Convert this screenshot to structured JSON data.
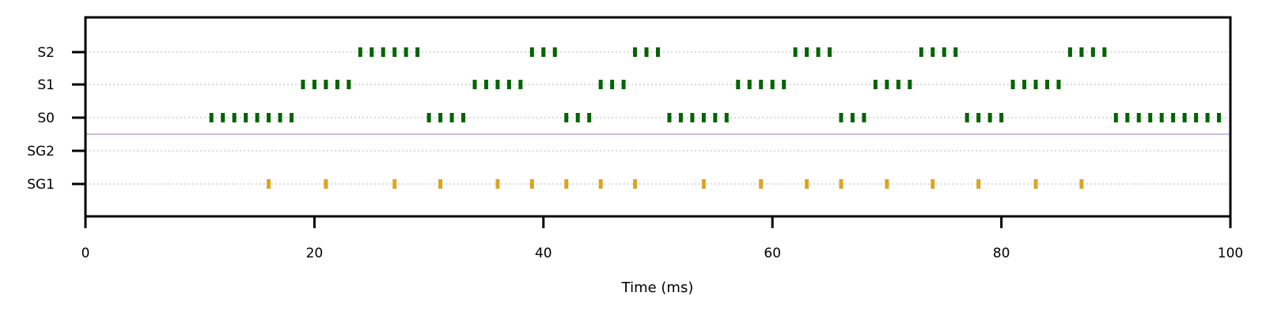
{
  "chart_data": {
    "type": "scatter",
    "title": "",
    "xlabel": "Time (ms)",
    "ylabel": "",
    "xlim": [
      0,
      100
    ],
    "x_ticks": [
      0,
      20,
      40,
      60,
      80,
      100
    ],
    "rows": [
      "S2",
      "S1",
      "S0",
      "SG2",
      "SG1"
    ],
    "grid": "horizontal dotted lines at each row",
    "separator": "horizontal line between S0 and SG2",
    "series": [
      {
        "name": "S2",
        "color": "#006400",
        "x": [
          24,
          25,
          26,
          27,
          28,
          29,
          39,
          40,
          41,
          48,
          49,
          50,
          62,
          63,
          64,
          65,
          73,
          74,
          75,
          76,
          86,
          87,
          88,
          89
        ]
      },
      {
        "name": "S1",
        "color": "#006400",
        "x": [
          19,
          20,
          21,
          22,
          23,
          34,
          35,
          36,
          37,
          38,
          45,
          46,
          47,
          57,
          58,
          59,
          60,
          61,
          69,
          70,
          71,
          72,
          81,
          82,
          83,
          84,
          85
        ]
      },
      {
        "name": "S0",
        "color": "#006400",
        "x": [
          11,
          12,
          13,
          14,
          15,
          16,
          17,
          18,
          30,
          31,
          32,
          33,
          42,
          43,
          44,
          51,
          52,
          53,
          54,
          55,
          56,
          66,
          67,
          68,
          77,
          78,
          79,
          80,
          90,
          91,
          92,
          93,
          94,
          95,
          96,
          97,
          98,
          99
        ]
      },
      {
        "name": "SG2",
        "color": "#DAA520",
        "x": []
      },
      {
        "name": "SG1",
        "color": "#DAA520",
        "x": [
          16,
          21,
          27,
          31,
          36,
          39,
          42,
          45,
          48,
          54,
          59,
          63,
          66,
          70,
          74,
          78,
          83,
          87
        ]
      }
    ]
  }
}
